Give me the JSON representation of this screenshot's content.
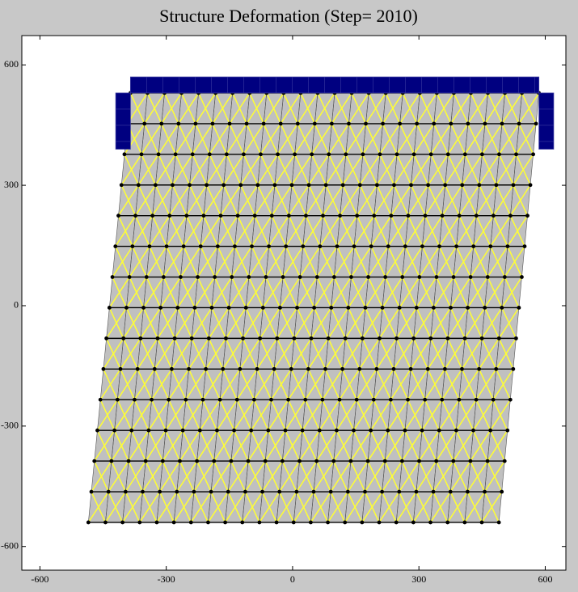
{
  "chart_data": {
    "type": "mesh",
    "title": "Structure Deformation (Step= 2010)",
    "xlim": [
      -643,
      649
    ],
    "ylim": [
      -659,
      673
    ],
    "xticks": [
      -600,
      -300,
      0,
      300,
      600
    ],
    "yticks": [
      -600,
      -300,
      0,
      300,
      600
    ],
    "mesh": {
      "columns": 24,
      "rows": 14,
      "corners": [
        [
          -485,
          -540
        ],
        [
          490,
          -540
        ],
        [
          585,
          530
        ],
        [
          -385,
          530
        ]
      ],
      "fill": "#c0c0c0",
      "edge": "#555555",
      "brace": "#ffff33",
      "node": "#000000"
    },
    "supports": {
      "color": "#000080",
      "rects": [
        [
          -385,
          530,
          585,
          570
        ],
        [
          -420,
          390,
          -385,
          530
        ],
        [
          585,
          390,
          620,
          530
        ]
      ]
    }
  }
}
